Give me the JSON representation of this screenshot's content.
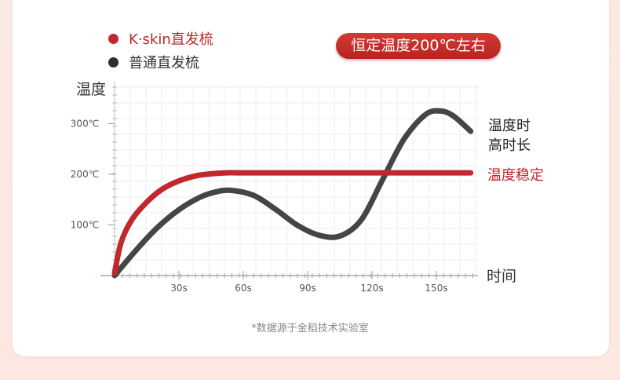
{
  "badge": "恒定温度200℃左右",
  "note": "*数据源于金稻技术实验室",
  "colors": {
    "kskin": "#c1272d",
    "normal": "#454545"
  },
  "chart_data": {
    "type": "line",
    "ylabel": "温度",
    "xlabel": "时间",
    "y_ticks": [
      {
        "value": 100,
        "label": "100℃"
      },
      {
        "value": 200,
        "label": "200℃"
      },
      {
        "value": 300,
        "label": "300℃"
      }
    ],
    "x_ticks": [
      {
        "value": 30,
        "label": "30s"
      },
      {
        "value": 60,
        "label": "60s"
      },
      {
        "value": 90,
        "label": "90s"
      },
      {
        "value": 120,
        "label": "120s"
      },
      {
        "value": 150,
        "label": "150s"
      }
    ],
    "xlim": [
      0,
      166
    ],
    "ylim": [
      0,
      350
    ],
    "series": [
      {
        "name": "K·skin直发梳",
        "annotation": "温度稳定",
        "x": [
          0,
          3,
          8,
          15,
          22,
          30,
          38,
          45,
          52,
          60,
          90,
          120,
          150,
          166
        ],
        "y": [
          5,
          65,
          110,
          145,
          170,
          187,
          197,
          201,
          203,
          203,
          203,
          203,
          203,
          203
        ]
      },
      {
        "name": "普通直发梳",
        "annotation_lines": [
          "温度时",
          "高时长"
        ],
        "x": [
          0,
          10,
          20,
          30,
          40,
          48,
          55,
          65,
          75,
          85,
          95,
          105,
          115,
          125,
          135,
          145,
          152,
          158,
          166
        ],
        "y": [
          0,
          50,
          95,
          130,
          155,
          166,
          168,
          158,
          131,
          100,
          80,
          78,
          110,
          190,
          270,
          318,
          325,
          315,
          285
        ]
      }
    ]
  }
}
